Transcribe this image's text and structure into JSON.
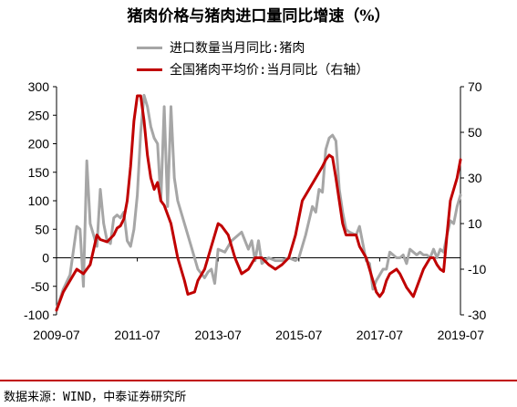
{
  "title": "猪肉价格与猪肉进口量同比增速（%）",
  "source": "数据来源：WIND，中泰证券研究所",
  "chart_data": {
    "type": "line",
    "title": "猪肉价格与猪肉进口量同比增速（%）",
    "x_tick_labels": [
      "2009-07",
      "2011-07",
      "2013-07",
      "2015-07",
      "2017-07",
      "2019-07"
    ],
    "x_range": [
      "2009-07",
      "2019-07"
    ],
    "y_left": {
      "ylim": [
        -100,
        300
      ],
      "ticks": [
        -100,
        -50,
        0,
        50,
        100,
        150,
        200,
        250,
        300
      ]
    },
    "y_right": {
      "ylim": [
        -30,
        70
      ],
      "ticks": [
        -30,
        -10,
        10,
        30,
        50,
        70
      ]
    },
    "grid": false,
    "legend_position": "top",
    "series": [
      {
        "name": "进口数量当月同比:猪肉",
        "axis": "left",
        "color": "#a6a6a6",
        "points": [
          [
            "2009-07",
            -90
          ],
          [
            "2009-09",
            -55
          ],
          [
            "2009-11",
            -30
          ],
          [
            "2010-01",
            55
          ],
          [
            "2010-02",
            50
          ],
          [
            "2010-03",
            -50
          ],
          [
            "2010-04",
            170
          ],
          [
            "2010-05",
            60
          ],
          [
            "2010-07",
            20
          ],
          [
            "2010-08",
            120
          ],
          [
            "2010-09",
            60
          ],
          [
            "2010-10",
            30
          ],
          [
            "2010-11",
            25
          ],
          [
            "2010-12",
            70
          ],
          [
            "2011-01",
            75
          ],
          [
            "2011-02",
            70
          ],
          [
            "2011-03",
            80
          ],
          [
            "2011-04",
            30
          ],
          [
            "2011-05",
            20
          ],
          [
            "2011-06",
            50
          ],
          [
            "2011-07",
            110
          ],
          [
            "2011-08",
            220
          ],
          [
            "2011-09",
            285
          ],
          [
            "2011-10",
            265
          ],
          [
            "2011-11",
            230
          ],
          [
            "2011-12",
            210
          ],
          [
            "2012-01",
            200
          ],
          [
            "2012-02",
            100
          ],
          [
            "2012-03",
            265
          ],
          [
            "2012-04",
            90
          ],
          [
            "2012-05",
            265
          ],
          [
            "2012-06",
            140
          ],
          [
            "2012-07",
            100
          ],
          [
            "2012-09",
            60
          ],
          [
            "2012-11",
            20
          ],
          [
            "2013-01",
            -20
          ],
          [
            "2013-03",
            -35
          ],
          [
            "2013-04",
            -25
          ],
          [
            "2013-05",
            -20
          ],
          [
            "2013-06",
            -45
          ],
          [
            "2013-07",
            15
          ],
          [
            "2013-09",
            10
          ],
          [
            "2013-11",
            30
          ],
          [
            "2014-01",
            40
          ],
          [
            "2014-02",
            45
          ],
          [
            "2014-04",
            15
          ],
          [
            "2014-05",
            30
          ],
          [
            "2014-06",
            -5
          ],
          [
            "2014-07",
            30
          ],
          [
            "2014-08",
            -10
          ],
          [
            "2014-10",
            0
          ],
          [
            "2014-12",
            -5
          ],
          [
            "2015-02",
            -5
          ],
          [
            "2015-04",
            0
          ],
          [
            "2015-06",
            -5
          ],
          [
            "2015-07",
            0
          ],
          [
            "2015-09",
            40
          ],
          [
            "2015-11",
            90
          ],
          [
            "2015-12",
            80
          ],
          [
            "2016-01",
            120
          ],
          [
            "2016-02",
            115
          ],
          [
            "2016-03",
            190
          ],
          [
            "2016-04",
            210
          ],
          [
            "2016-05",
            215
          ],
          [
            "2016-06",
            205
          ],
          [
            "2016-07",
            120
          ],
          [
            "2016-08",
            80
          ],
          [
            "2016-09",
            50
          ],
          [
            "2016-10",
            45
          ],
          [
            "2016-12",
            40
          ],
          [
            "2017-01",
            55
          ],
          [
            "2017-02",
            25
          ],
          [
            "2017-03",
            -5
          ],
          [
            "2017-04",
            -10
          ],
          [
            "2017-05",
            -55
          ],
          [
            "2017-06",
            -40
          ],
          [
            "2017-07",
            -30
          ],
          [
            "2017-08",
            -20
          ],
          [
            "2017-09",
            -20
          ],
          [
            "2017-10",
            10
          ],
          [
            "2017-11",
            5
          ],
          [
            "2017-12",
            0
          ],
          [
            "2018-01",
            0
          ],
          [
            "2018-02",
            5
          ],
          [
            "2018-03",
            -10
          ],
          [
            "2018-04",
            15
          ],
          [
            "2018-05",
            10
          ],
          [
            "2018-06",
            5
          ],
          [
            "2018-07",
            10
          ],
          [
            "2018-08",
            5
          ],
          [
            "2018-09",
            5
          ],
          [
            "2018-10",
            0
          ],
          [
            "2018-11",
            15
          ],
          [
            "2018-12",
            0
          ],
          [
            "2019-01",
            15
          ],
          [
            "2019-02",
            10
          ],
          [
            "2019-03",
            40
          ],
          [
            "2019-04",
            65
          ],
          [
            "2019-05",
            60
          ],
          [
            "2019-06",
            90
          ],
          [
            "2019-07",
            110
          ]
        ]
      },
      {
        "name": "全国猪肉平均价:当月同比（右轴）",
        "axis": "right",
        "color": "#c00000",
        "points": [
          [
            "2009-07",
            -28
          ],
          [
            "2009-09",
            -20
          ],
          [
            "2009-11",
            -15
          ],
          [
            "2010-01",
            -10
          ],
          [
            "2010-03",
            -12
          ],
          [
            "2010-05",
            -8
          ],
          [
            "2010-07",
            5
          ],
          [
            "2010-08",
            3
          ],
          [
            "2010-10",
            2
          ],
          [
            "2010-12",
            5
          ],
          [
            "2011-01",
            8
          ],
          [
            "2011-02",
            9
          ],
          [
            "2011-03",
            12
          ],
          [
            "2011-04",
            20
          ],
          [
            "2011-05",
            35
          ],
          [
            "2011-06",
            55
          ],
          [
            "2011-07",
            66
          ],
          [
            "2011-08",
            66
          ],
          [
            "2011-09",
            55
          ],
          [
            "2011-10",
            40
          ],
          [
            "2011-11",
            30
          ],
          [
            "2011-12",
            25
          ],
          [
            "2012-01",
            28
          ],
          [
            "2012-02",
            20
          ],
          [
            "2012-03",
            18
          ],
          [
            "2012-05",
            10
          ],
          [
            "2012-07",
            -5
          ],
          [
            "2012-09",
            -15
          ],
          [
            "2012-10",
            -21
          ],
          [
            "2012-12",
            -20
          ],
          [
            "2013-01",
            -15
          ],
          [
            "2013-03",
            -10
          ],
          [
            "2013-05",
            0
          ],
          [
            "2013-06",
            5
          ],
          [
            "2013-07",
            10
          ],
          [
            "2013-08",
            9
          ],
          [
            "2013-10",
            5
          ],
          [
            "2013-12",
            -5
          ],
          [
            "2014-02",
            -12
          ],
          [
            "2014-04",
            -10
          ],
          [
            "2014-06",
            -5
          ],
          [
            "2014-08",
            -5
          ],
          [
            "2014-10",
            -8
          ],
          [
            "2014-12",
            -10
          ],
          [
            "2015-02",
            -8
          ],
          [
            "2015-04",
            -5
          ],
          [
            "2015-06",
            5
          ],
          [
            "2015-08",
            20
          ],
          [
            "2015-10",
            25
          ],
          [
            "2015-12",
            30
          ],
          [
            "2016-02",
            35
          ],
          [
            "2016-03",
            38
          ],
          [
            "2016-04",
            40
          ],
          [
            "2016-05",
            39
          ],
          [
            "2016-06",
            30
          ],
          [
            "2016-07",
            20
          ],
          [
            "2016-08",
            10
          ],
          [
            "2016-09",
            5
          ],
          [
            "2016-10",
            5
          ],
          [
            "2016-12",
            5
          ],
          [
            "2017-01",
            0
          ],
          [
            "2017-03",
            -5
          ],
          [
            "2017-05",
            -15
          ],
          [
            "2017-06",
            -20
          ],
          [
            "2017-07",
            -22
          ],
          [
            "2017-08",
            -20
          ],
          [
            "2017-09",
            -15
          ],
          [
            "2017-10",
            -12
          ],
          [
            "2017-12",
            -10
          ],
          [
            "2018-01",
            -12
          ],
          [
            "2018-03",
            -18
          ],
          [
            "2018-05",
            -22
          ],
          [
            "2018-06",
            -18
          ],
          [
            "2018-08",
            -10
          ],
          [
            "2018-10",
            -5
          ],
          [
            "2018-11",
            -5
          ],
          [
            "2018-12",
            -8
          ],
          [
            "2019-01",
            -10
          ],
          [
            "2019-02",
            -11
          ],
          [
            "2019-03",
            5
          ],
          [
            "2019-04",
            20
          ],
          [
            "2019-05",
            25
          ],
          [
            "2019-06",
            30
          ],
          [
            "2019-07",
            38
          ]
        ]
      }
    ]
  }
}
